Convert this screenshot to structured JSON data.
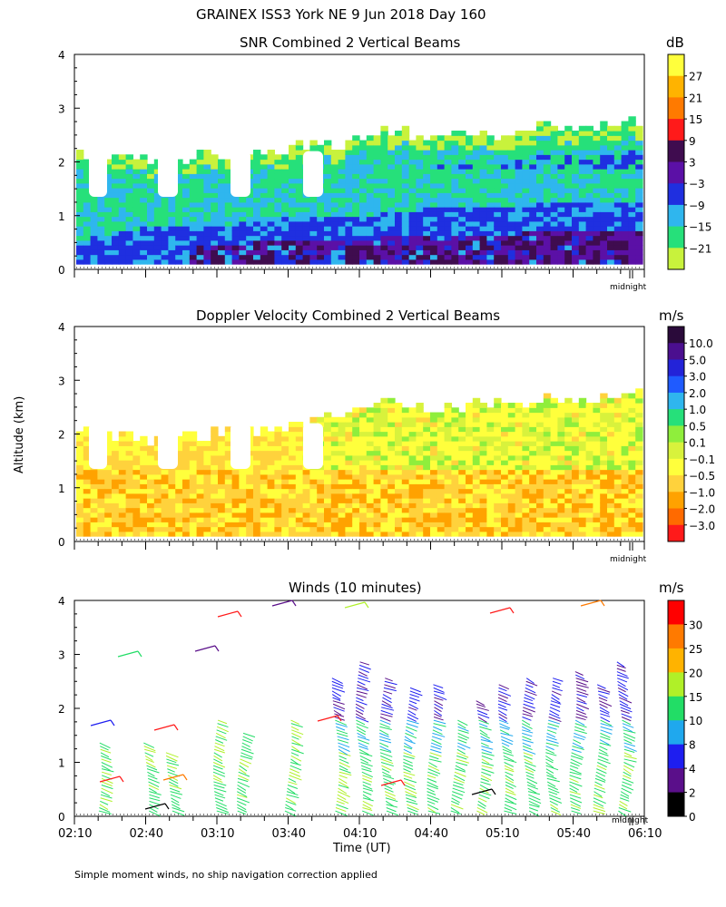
{
  "figure": {
    "main_title": "GRAINEX ISS3 York NE   9 Jun 2018 Day 160",
    "y_axis_label": "Altitude (km)",
    "x_axis_label": "Time (UT)",
    "footer_note": "Simple moment winds, no ship navigation correction applied",
    "midnight_label": "midnight"
  },
  "chart_data": [
    {
      "type": "heatmap",
      "title": "SNR Combined 2 Vertical Beams",
      "ylabel": "Altitude (km)",
      "ylim": [
        0,
        4
      ],
      "yticks": [
        "0",
        "1",
        "2",
        "3",
        "4"
      ],
      "colorbar": {
        "unit": "dB",
        "labels": [
          "27",
          "21",
          "15",
          "9",
          "3",
          "−3",
          "−9",
          "−15",
          "−21"
        ],
        "colors": [
          "#ffff3c",
          "#ffb300",
          "#ff7a00",
          "#ff1a1a",
          "#3f0c4f",
          "#5b10a6",
          "#1f2fe0",
          "#2fb6ee",
          "#26e07a",
          "#c8f23c"
        ]
      },
      "echo_top_km": [
        2.1,
        2.0,
        2.0,
        2.1,
        2.2,
        2.3,
        2.6,
        2.4,
        2.5,
        2.6,
        2.6,
        2.7
      ],
      "strong_layer_top_km": [
        0.5,
        0.7,
        0.8,
        0.8,
        0.9,
        0.9,
        1.0,
        1.1,
        1.1,
        1.2,
        1.2,
        1.2
      ]
    },
    {
      "type": "heatmap",
      "title": "Doppler Velocity Combined 2 Vertical Beams",
      "ylabel": "Altitude (km)",
      "ylim": [
        0,
        4
      ],
      "yticks": [
        "0",
        "1",
        "2",
        "3",
        "4"
      ],
      "colorbar": {
        "unit": "m/s",
        "labels": [
          "10.0",
          "5.0",
          "3.0",
          "2.0",
          "1.0",
          "0.5",
          "0.1",
          "−0.1",
          "−0.5",
          "−1.0",
          "−2.0",
          "−3.0"
        ],
        "colors": [
          "#2a0a3a",
          "#4b0f8f",
          "#2323d8",
          "#1f5bff",
          "#2fb6ee",
          "#26e07a",
          "#8fee3c",
          "#d8f23c",
          "#ffff3c",
          "#ffd23c",
          "#ffa200",
          "#ff6a00",
          "#ff1a1a"
        ]
      },
      "echo_top_km": [
        2.0,
        1.9,
        1.9,
        2.0,
        2.1,
        2.3,
        2.6,
        2.4,
        2.5,
        2.6,
        2.6,
        2.7
      ]
    },
    {
      "type": "scatter",
      "title": "Winds (10 minutes)",
      "ylabel": "Altitude (km)",
      "ylim": [
        0,
        4
      ],
      "yticks": [
        "0",
        "1",
        "2",
        "3",
        "4"
      ],
      "colorbar": {
        "unit": "m/s",
        "labels": [
          "30",
          "25",
          "20",
          "15",
          "10",
          "8",
          "4",
          "2",
          "0"
        ],
        "colors": [
          "#ff0000",
          "#ff7a00",
          "#ffb300",
          "#b0f028",
          "#22dd66",
          "#1fa8ee",
          "#1e1ef0",
          "#5a0f8a",
          "#000000"
        ]
      },
      "xlabel": "Time (UT)",
      "xticks": [
        "02:10",
        "02:40",
        "03:10",
        "03:40",
        "04:10",
        "04:40",
        "05:10",
        "05:40",
        "06:10"
      ],
      "wind_profiles": [
        {
          "time": "02:20",
          "top_km": 1.4
        },
        {
          "time": "02:40",
          "top_km": 1.4
        },
        {
          "time": "02:50",
          "top_km": 1.2
        },
        {
          "time": "03:10",
          "top_km": 1.8
        },
        {
          "time": "03:20",
          "top_km": 1.6
        },
        {
          "time": "03:40",
          "top_km": 1.8
        },
        {
          "time": "04:00",
          "top_km": 2.6
        },
        {
          "time": "04:10",
          "top_km": 2.9
        },
        {
          "time": "04:20",
          "top_km": 2.6
        },
        {
          "time": "04:30",
          "top_km": 2.4
        },
        {
          "time": "04:40",
          "top_km": 2.5
        },
        {
          "time": "04:50",
          "top_km": 1.8
        },
        {
          "time": "05:00",
          "top_km": 2.2
        },
        {
          "time": "05:10",
          "top_km": 2.5
        },
        {
          "time": "05:20",
          "top_km": 2.6
        },
        {
          "time": "05:30",
          "top_km": 2.6
        },
        {
          "time": "05:40",
          "top_km": 2.7
        },
        {
          "time": "05:50",
          "top_km": 2.5
        },
        {
          "time": "06:00",
          "top_km": 2.9
        }
      ]
    }
  ]
}
